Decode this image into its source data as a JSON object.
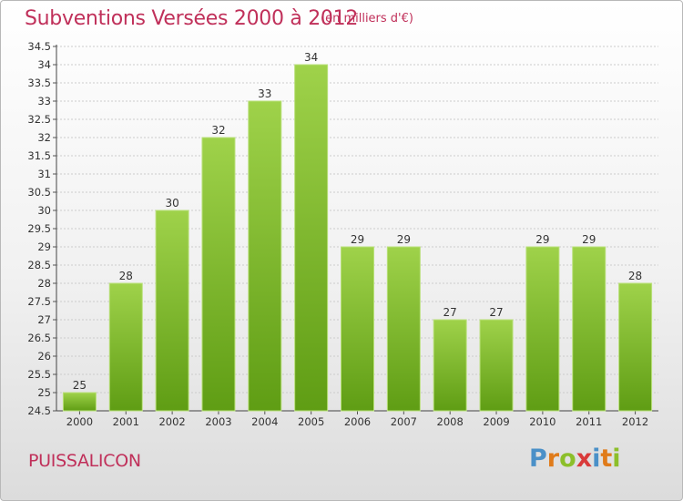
{
  "header": {
    "title": "Subventions Versées 2000 à 2012",
    "subtitle": "(en milliers d'€)"
  },
  "footer": {
    "commune": "PUISSALICON",
    "logo_letters": [
      "P",
      "r",
      "o",
      "x",
      "i",
      "t",
      "i"
    ],
    "logo_colors": [
      "#4a90c8",
      "#e07b1a",
      "#8cbf2a",
      "#d93a3a",
      "#4a90c8",
      "#e07b1a",
      "#8cbf2a"
    ]
  },
  "colors": {
    "bar_top": "#9fd24a",
    "bar_bottom": "#5f9d14",
    "title": "#c0305a",
    "grid": "#cccccc"
  },
  "chart_data": {
    "type": "bar",
    "title": "Subventions Versées 2000 à 2012",
    "subtitle": "(en milliers d'€)",
    "xlabel": "",
    "ylabel": "",
    "categories": [
      "2000",
      "2001",
      "2002",
      "2003",
      "2004",
      "2005",
      "2006",
      "2007",
      "2008",
      "2009",
      "2010",
      "2011",
      "2012"
    ],
    "values": [
      25,
      28,
      30,
      32,
      33,
      34,
      29,
      29,
      27,
      27,
      29,
      29,
      28
    ],
    "data_labels": [
      "25",
      "28",
      "30",
      "32",
      "33",
      "34",
      "29",
      "29",
      "27",
      "27",
      "29",
      "29",
      "28"
    ],
    "ylim": [
      24.5,
      34.5
    ],
    "yticks": [
      "24.5",
      "25",
      "25.5",
      "26",
      "26.5",
      "27",
      "27.5",
      "28",
      "28.5",
      "29",
      "29.5",
      "30",
      "30.5",
      "31",
      "31.5",
      "32",
      "32.5",
      "33",
      "33.5",
      "34",
      "34.5"
    ],
    "grid": true,
    "legend": "none"
  }
}
